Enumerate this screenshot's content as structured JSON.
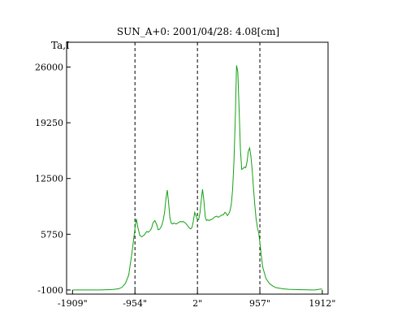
{
  "chart_data": {
    "type": "line",
    "title": "SUN_A+0: 2001/04/28: 4.08[cm]",
    "ylabel": "Ta,I",
    "xlabel": "",
    "xlim": [
      -2000,
      2000
    ],
    "ylim": [
      -1500,
      29000
    ],
    "x_ticks": [
      {
        "value": -1909,
        "label": "-1909\""
      },
      {
        "value": -954,
        "label": "-954\""
      },
      {
        "value": 2,
        "label": "2\""
      },
      {
        "value": 957,
        "label": "957\""
      },
      {
        "value": 1912,
        "label": "1912\""
      }
    ],
    "y_ticks": [
      {
        "value": 26000,
        "label": "26000"
      },
      {
        "value": 19250,
        "label": "19250"
      },
      {
        "value": 12500,
        "label": "12500"
      },
      {
        "value": 5750,
        "label": "5750"
      },
      {
        "value": -1000,
        "label": "-1000"
      }
    ],
    "vlines": [
      -954,
      2,
      957
    ],
    "colors": {
      "series": "#12a012",
      "frame": "#000000",
      "vline": "#000000"
    },
    "series": [
      {
        "name": "",
        "x": [
          -1909,
          -1700,
          -1500,
          -1300,
          -1200,
          -1150,
          -1100,
          -1050,
          -1000,
          -970,
          -945,
          -930,
          -910,
          -880,
          -850,
          -820,
          -790,
          -770,
          -750,
          -720,
          -700,
          -680,
          -650,
          -620,
          -600,
          -580,
          -560,
          -540,
          -520,
          -500,
          -480,
          -460,
          -440,
          -420,
          -400,
          -380,
          -360,
          -340,
          -320,
          -300,
          -280,
          -260,
          -240,
          -220,
          -200,
          -180,
          -160,
          -140,
          -120,
          -100,
          -80,
          -60,
          -40,
          -20,
          0,
          20,
          40,
          60,
          80,
          100,
          120,
          140,
          160,
          180,
          200,
          220,
          240,
          260,
          280,
          300,
          320,
          340,
          360,
          380,
          400,
          420,
          440,
          460,
          480,
          500,
          520,
          540,
          560,
          580,
          600,
          620,
          640,
          660,
          680,
          700,
          720,
          740,
          760,
          780,
          800,
          820,
          840,
          860,
          880,
          900,
          920,
          940,
          960,
          980,
          1000,
          1050,
          1100,
          1150,
          1200,
          1300,
          1400,
          1500,
          1600,
          1700,
          1800,
          1880,
          1912
        ],
        "values": [
          -1000,
          -1000,
          -1000,
          -950,
          -850,
          -650,
          -200,
          800,
          3500,
          5400,
          7000,
          7600,
          6600,
          5600,
          5450,
          5600,
          5900,
          6100,
          6000,
          6200,
          6500,
          7100,
          7400,
          6900,
          6300,
          6350,
          6550,
          6900,
          7500,
          8500,
          10100,
          11100,
          9600,
          7800,
          7100,
          7000,
          7100,
          7050,
          7000,
          7100,
          7200,
          7300,
          7250,
          7300,
          7200,
          7100,
          6900,
          6700,
          6500,
          6400,
          6600,
          7400,
          8400,
          8000,
          7500,
          7500,
          8300,
          9800,
          11200,
          9800,
          7900,
          7400,
          7500,
          7400,
          7500,
          7550,
          7650,
          7800,
          7900,
          7950,
          7800,
          7900,
          8000,
          8100,
          8100,
          8400,
          8300,
          8000,
          8200,
          8600,
          9400,
          11200,
          14500,
          19500,
          26200,
          25400,
          20800,
          16000,
          13600,
          13700,
          13900,
          13800,
          14500,
          15800,
          16200,
          15200,
          13500,
          11300,
          9300,
          7600,
          6500,
          5900,
          4500,
          3100,
          1800,
          400,
          -200,
          -500,
          -700,
          -850,
          -920,
          -950,
          -970,
          -990,
          -1000,
          -900,
          -900
        ]
      }
    ]
  }
}
